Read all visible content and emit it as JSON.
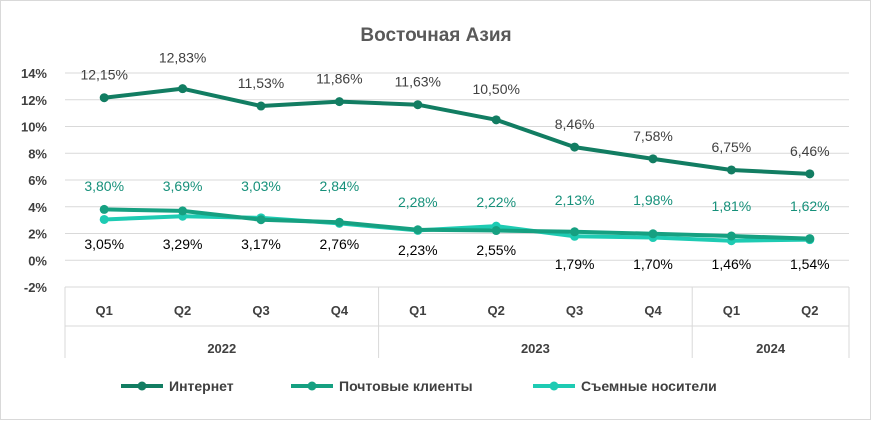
{
  "chart_data": {
    "type": "line",
    "title": "Восточная Азия",
    "categories": [
      "Q1",
      "Q2",
      "Q3",
      "Q4",
      "Q1",
      "Q2",
      "Q3",
      "Q4",
      "Q1",
      "Q2"
    ],
    "year_groups": [
      {
        "label": "2022",
        "count": 4
      },
      {
        "label": "2023",
        "count": 4
      },
      {
        "label": "2024",
        "count": 2
      }
    ],
    "y_ticks": [
      "14%",
      "12%",
      "10%",
      "8%",
      "6%",
      "4%",
      "2%",
      "0%",
      "-2%"
    ],
    "ylim": [
      -2,
      14
    ],
    "grid": true,
    "legend_position": "bottom",
    "series": [
      {
        "name": "Интернет",
        "color": "#127d62",
        "label_color": "#404040",
        "values": [
          12.15,
          12.83,
          11.53,
          11.86,
          11.63,
          10.5,
          8.46,
          7.58,
          6.75,
          6.46
        ],
        "labels": [
          "12,15%",
          "12,83%",
          "11,53%",
          "11,86%",
          "11,63%",
          "10,50%",
          "8,46%",
          "7,58%",
          "6,75%",
          "6,46%"
        ]
      },
      {
        "name": "Почтовые клиенты",
        "color": "#16a081",
        "label_color": "#16907a",
        "values": [
          3.8,
          3.69,
          3.03,
          2.84,
          2.28,
          2.22,
          2.13,
          1.98,
          1.81,
          1.62
        ],
        "labels": [
          "3,80%",
          "3,69%",
          "3,03%",
          "2,84%",
          "2,28%",
          "2,22%",
          "2,13%",
          "1,98%",
          "1,81%",
          "1,62%"
        ]
      },
      {
        "name": "Съемные носители",
        "color": "#1ecbb3",
        "label_color": "#000000",
        "values": [
          3.05,
          3.29,
          3.17,
          2.76,
          2.23,
          2.55,
          1.79,
          1.7,
          1.46,
          1.54
        ],
        "labels": [
          "3,05%",
          "3,29%",
          "3,17%",
          "2,76%",
          "2,23%",
          "2,55%",
          "1,79%",
          "1,70%",
          "1,46%",
          "1,54%"
        ]
      }
    ]
  }
}
